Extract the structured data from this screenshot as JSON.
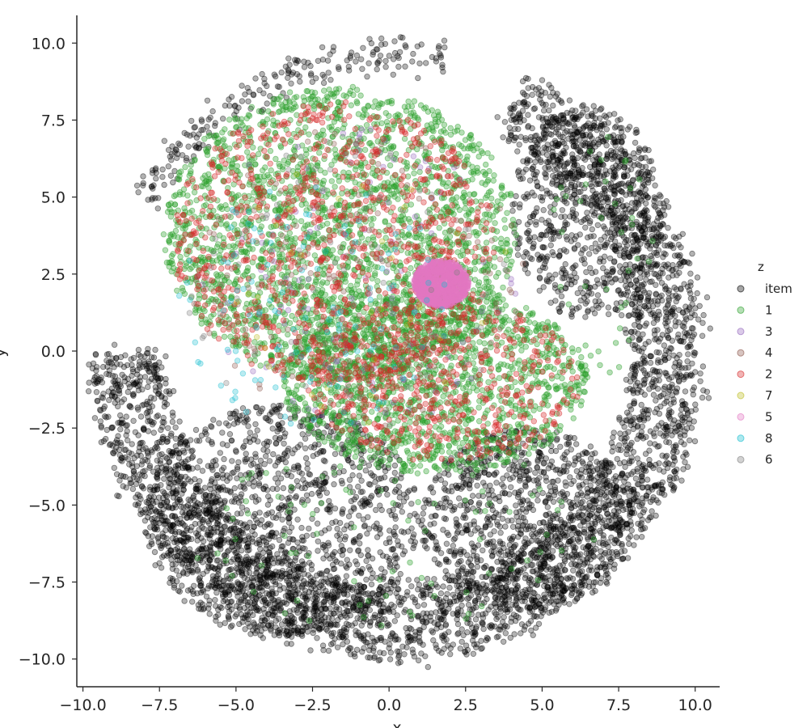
{
  "chart_data": {
    "type": "scatter",
    "title": "",
    "xlabel": "x",
    "ylabel": "y",
    "xlim": [
      -10.2,
      10.8
    ],
    "ylim": [
      -10.9,
      10.9
    ],
    "xticks": [
      -10.0,
      -7.5,
      -5.0,
      -2.5,
      0.0,
      2.5,
      5.0,
      7.5,
      10.0
    ],
    "yticks": [
      -10.0,
      -7.5,
      -5.0,
      -2.5,
      0.0,
      2.5,
      5.0,
      7.5,
      10.0
    ],
    "xtick_labels": [
      "−10.0",
      "−7.5",
      "−5.0",
      "−2.5",
      "0.0",
      "2.5",
      "5.0",
      "7.5",
      "10.0"
    ],
    "ytick_labels": [
      "−10.0",
      "−7.5",
      "−5.0",
      "−2.5",
      "0.0",
      "2.5",
      "5.0",
      "7.5",
      "10.0"
    ],
    "grid": false,
    "legend": {
      "title": "z",
      "placement": "right",
      "entries": [
        {
          "label": "item",
          "color": "#000000"
        },
        {
          "label": "1",
          "color": "#2ca02c"
        },
        {
          "label": "3",
          "color": "#9467bd"
        },
        {
          "label": "4",
          "color": "#8c564b"
        },
        {
          "label": "2",
          "color": "#d62728"
        },
        {
          "label": "7",
          "color": "#bcbd22"
        },
        {
          "label": "5",
          "color": "#e377c2"
        },
        {
          "label": "8",
          "color": "#17becf"
        },
        {
          "label": "6",
          "color": "#7f7f7f"
        }
      ]
    },
    "series": [
      {
        "name": "item",
        "color": "#000000",
        "alpha": 0.3,
        "regions": [
          {
            "kind": "annulus_arc",
            "cx": 0.3,
            "cy": 0.0,
            "r_inner": 7.6,
            "r_outer": 10.0,
            "angle_from": -180,
            "angle_to": 10,
            "count": 2600
          },
          {
            "kind": "annulus_arc",
            "cx": 0.3,
            "cy": 0.0,
            "r_inner": 7.8,
            "r_outer": 9.9,
            "angle_from": 10,
            "angle_to": 65,
            "count": 700
          },
          {
            "kind": "annulus_arc",
            "cx": 0.3,
            "cy": 0.0,
            "r_inner": 9.2,
            "r_outer": 10.0,
            "angle_from": 80,
            "angle_to": 150,
            "count": 220
          },
          {
            "kind": "blob",
            "cx": -3.5,
            "cy": -5.5,
            "rx": 4.5,
            "ry": 3.8,
            "count": 1400
          },
          {
            "kind": "blob",
            "cx": 4.5,
            "cy": -5.5,
            "rx": 3.5,
            "ry": 3.0,
            "count": 1000
          },
          {
            "kind": "blob",
            "cx": 6.5,
            "cy": 4.5,
            "rx": 2.5,
            "ry": 3.5,
            "count": 700
          },
          {
            "kind": "blob",
            "cx": 1.6,
            "cy": 2.1,
            "rx": 0.9,
            "ry": 0.7,
            "count": 60
          }
        ]
      },
      {
        "name": "1",
        "color": "#2ca02c",
        "alpha": 0.35,
        "regions": [
          {
            "kind": "blob",
            "cx": -1.6,
            "cy": 3.8,
            "rx": 5.8,
            "ry": 4.8,
            "count": 2400
          },
          {
            "kind": "blob",
            "cx": 1.5,
            "cy": -1.0,
            "rx": 5.0,
            "ry": 3.0,
            "count": 1500
          },
          {
            "kind": "blob",
            "cx": 0.0,
            "cy": -6.0,
            "rx": 7.0,
            "ry": 3.0,
            "count": 90
          },
          {
            "kind": "blob",
            "cx": 7.0,
            "cy": 3.0,
            "rx": 2.0,
            "ry": 4.0,
            "count": 40
          }
        ]
      },
      {
        "name": "3",
        "color": "#9467bd",
        "alpha": 0.3,
        "regions": [
          {
            "kind": "blob",
            "cx": -1.0,
            "cy": 2.5,
            "rx": 5.5,
            "ry": 5.0,
            "count": 120
          }
        ]
      },
      {
        "name": "4",
        "color": "#8c564b",
        "alpha": 0.3,
        "regions": [
          {
            "kind": "blob",
            "cx": -1.0,
            "cy": 2.5,
            "rx": 5.5,
            "ry": 5.0,
            "count": 220
          }
        ]
      },
      {
        "name": "2",
        "color": "#d62728",
        "alpha": 0.35,
        "regions": [
          {
            "kind": "blob",
            "cx": -1.8,
            "cy": 3.5,
            "rx": 5.3,
            "ry": 4.6,
            "count": 900
          },
          {
            "kind": "blob",
            "cx": 1.8,
            "cy": -1.0,
            "rx": 4.5,
            "ry": 2.6,
            "count": 500
          }
        ]
      },
      {
        "name": "7",
        "color": "#bcbd22",
        "alpha": 0.3,
        "regions": [
          {
            "kind": "blob",
            "cx": -1.0,
            "cy": 2.0,
            "rx": 5.0,
            "ry": 4.5,
            "count": 40
          }
        ]
      },
      {
        "name": "5",
        "color": "#e377c2",
        "alpha": 0.45,
        "regions": [
          {
            "kind": "blob",
            "cx": 1.7,
            "cy": 2.2,
            "rx": 0.9,
            "ry": 0.75,
            "count": 700
          }
        ]
      },
      {
        "name": "8",
        "color": "#17becf",
        "alpha": 0.3,
        "regions": [
          {
            "kind": "blob",
            "cx": -2.5,
            "cy": 1.5,
            "rx": 4.5,
            "ry": 4.0,
            "count": 120
          }
        ]
      },
      {
        "name": "6",
        "color": "#7f7f7f",
        "alpha": 0.3,
        "regions": [
          {
            "kind": "blob",
            "cx": -1.5,
            "cy": 2.0,
            "rx": 5.5,
            "ry": 5.0,
            "count": 80
          }
        ]
      }
    ]
  }
}
